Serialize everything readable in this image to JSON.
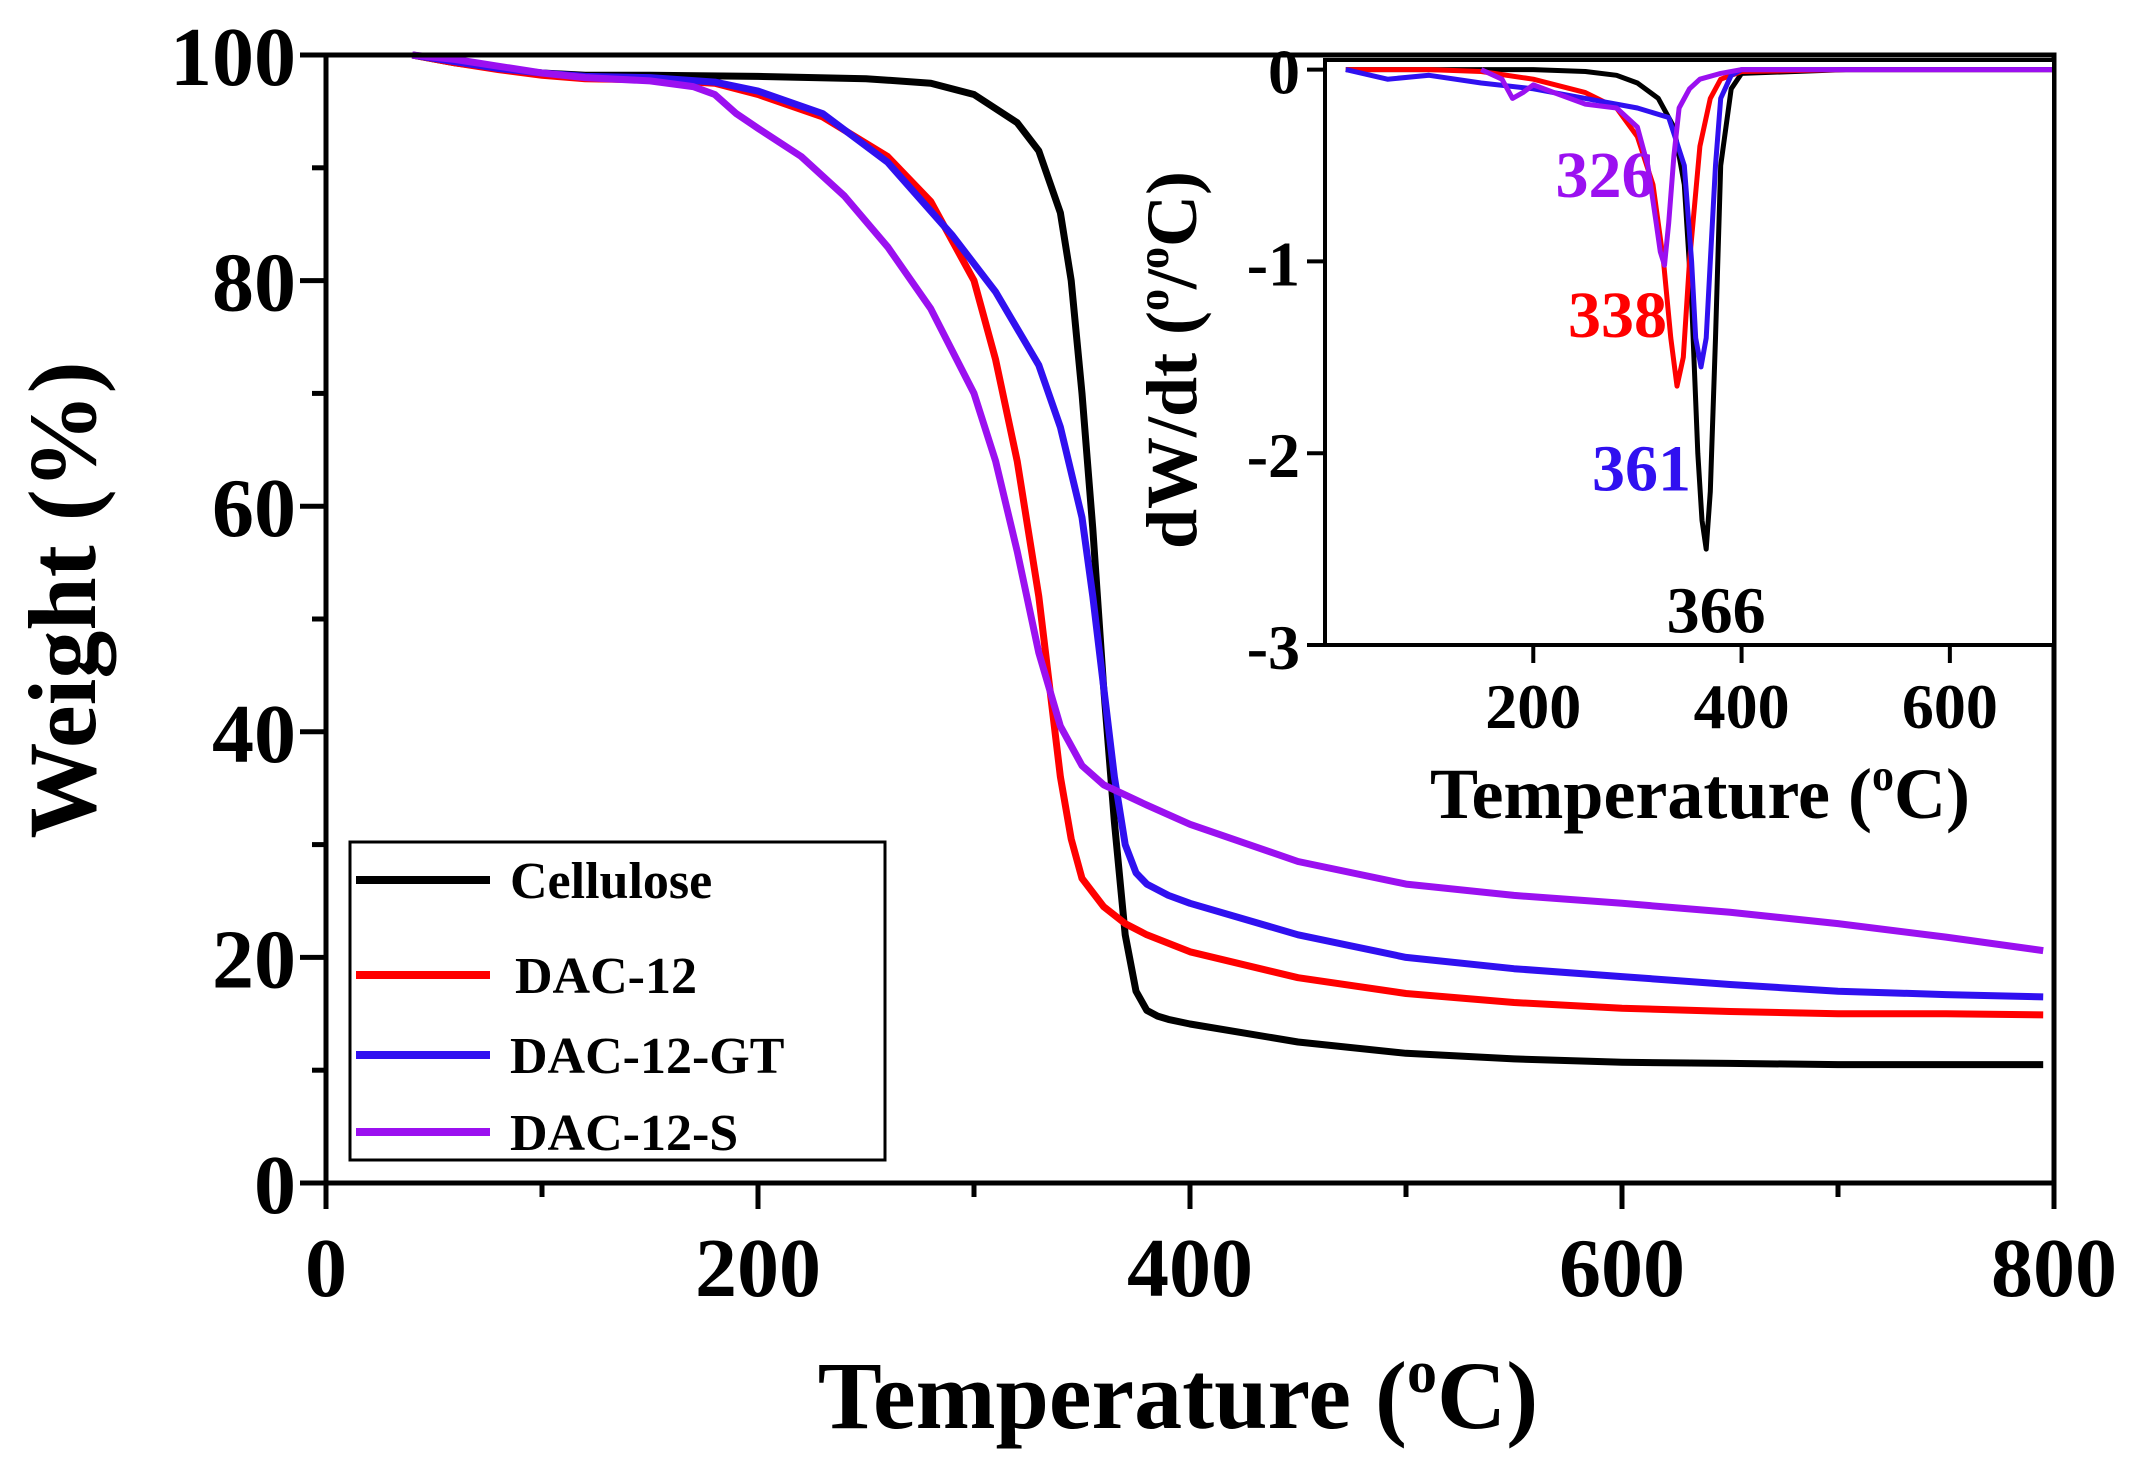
{
  "chart_data": [
    {
      "type": "line",
      "name": "main",
      "xlabel": "Temperature",
      "xlabel_sup": "o",
      "xlabel_unit": "C",
      "ylabel": "Weight (%)",
      "xlim": [
        0,
        800
      ],
      "ylim": [
        0,
        100
      ],
      "xticks": [
        0,
        200,
        400,
        600,
        800
      ],
      "yticks": [
        0,
        20,
        40,
        60,
        80,
        100
      ],
      "legend": {
        "position": "bottom-left",
        "entries": [
          "Cellulose",
          "DAC-12",
          "DAC-12-GT",
          "DAC-12-S"
        ]
      },
      "series": [
        {
          "name": "Cellulose",
          "color": "#000000",
          "x": [
            40,
            60,
            80,
            100,
            120,
            150,
            200,
            250,
            280,
            300,
            320,
            330,
            340,
            345,
            350,
            355,
            360,
            365,
            370,
            375,
            380,
            385,
            390,
            400,
            450,
            500,
            550,
            600,
            650,
            700,
            750,
            795
          ],
          "y": [
            100,
            99.3,
            98.8,
            98.4,
            98.2,
            98.2,
            98.1,
            97.9,
            97.5,
            96.5,
            94,
            91.5,
            86,
            80,
            70,
            58,
            44,
            32,
            22,
            17,
            15.3,
            14.8,
            14.5,
            14.1,
            12.5,
            11.5,
            11.0,
            10.7,
            10.6,
            10.5,
            10.5,
            10.5
          ]
        },
        {
          "name": "DAC-12",
          "color": "#ff0000",
          "x": [
            40,
            60,
            80,
            100,
            120,
            150,
            180,
            200,
            230,
            260,
            280,
            300,
            310,
            320,
            330,
            335,
            340,
            345,
            350,
            360,
            370,
            380,
            400,
            450,
            500,
            550,
            600,
            650,
            700,
            750,
            795
          ],
          "y": [
            100,
            99.3,
            98.7,
            98.2,
            97.9,
            97.8,
            97.5,
            96.5,
            94.5,
            91,
            87,
            80,
            73,
            64,
            52,
            44,
            36,
            30.5,
            27,
            24.5,
            23,
            22,
            20.5,
            18.2,
            16.8,
            16,
            15.5,
            15.2,
            15,
            15,
            14.9
          ]
        },
        {
          "name": "DAC-12-GT",
          "color": "#3010f0",
          "x": [
            40,
            60,
            80,
            100,
            120,
            150,
            180,
            200,
            230,
            260,
            290,
            310,
            330,
            340,
            350,
            355,
            360,
            365,
            370,
            375,
            380,
            390,
            400,
            450,
            500,
            550,
            600,
            650,
            700,
            750,
            795
          ],
          "y": [
            100,
            99.4,
            98.8,
            98.4,
            98.1,
            98,
            97.6,
            96.8,
            94.8,
            90.5,
            84,
            79,
            72.5,
            67,
            59,
            52,
            44,
            36,
            30,
            27.5,
            26.5,
            25.5,
            24.8,
            22,
            20,
            19,
            18.3,
            17.6,
            17,
            16.7,
            16.5
          ]
        },
        {
          "name": "DAC-12-S",
          "color": "#9b10f0",
          "x": [
            40,
            60,
            80,
            100,
            120,
            150,
            170,
            180,
            190,
            200,
            220,
            240,
            260,
            280,
            300,
            310,
            320,
            330,
            340,
            350,
            360,
            380,
            400,
            450,
            500,
            550,
            600,
            650,
            700,
            750,
            795
          ],
          "y": [
            100,
            99.6,
            99,
            98.4,
            98,
            97.7,
            97.2,
            96.5,
            94.8,
            93.5,
            91,
            87.5,
            83,
            77.5,
            70,
            64,
            56,
            47,
            40.5,
            37,
            35.3,
            33.5,
            31.8,
            28.5,
            26.5,
            25.5,
            24.8,
            24,
            23,
            21.8,
            20.6
          ]
        }
      ]
    },
    {
      "type": "line",
      "name": "inset",
      "xlabel": "Temperature",
      "xlabel_sup": "o",
      "xlabel_unit": "C",
      "ylabel_main": "dW/dt (",
      "ylabel_sup1": "o",
      "ylabel_mid": "/",
      "ylabel_sup2": "o",
      "ylabel_unit": "C)",
      "xlim": [
        0,
        700
      ],
      "ylim": [
        -3,
        0.05
      ],
      "xticks": [
        200,
        400,
        600
      ],
      "yticks": [
        0,
        -1,
        -2,
        -3
      ],
      "annotations": [
        {
          "text": "326",
          "x": 326,
          "y": -0.55,
          "color": "#9b10f0"
        },
        {
          "text": "338",
          "x": 338,
          "y": -1.28,
          "color": "#ff0000"
        },
        {
          "text": "361",
          "x": 361,
          "y": -2.08,
          "color": "#3010f0"
        },
        {
          "text": "366",
          "x": 366,
          "y": -2.82,
          "color": "#000000"
        }
      ],
      "series": [
        {
          "name": "Cellulose",
          "color": "#000000",
          "x": [
            20,
            100,
            200,
            250,
            280,
            300,
            320,
            335,
            345,
            352,
            358,
            362,
            366,
            370,
            375,
            380,
            390,
            400,
            500,
            600,
            700
          ],
          "y": [
            0,
            0,
            0,
            -0.01,
            -0.03,
            -0.07,
            -0.15,
            -0.3,
            -0.6,
            -1.2,
            -2.0,
            -2.35,
            -2.5,
            -2.2,
            -1.4,
            -0.5,
            -0.1,
            -0.02,
            0,
            0,
            0
          ]
        },
        {
          "name": "DAC-12",
          "color": "#ff0000",
          "x": [
            20,
            100,
            150,
            200,
            250,
            280,
            300,
            315,
            325,
            332,
            338,
            344,
            350,
            360,
            370,
            380,
            400,
            500,
            600,
            700
          ],
          "y": [
            0,
            0,
            -0.01,
            -0.05,
            -0.12,
            -0.2,
            -0.35,
            -0.6,
            -1.0,
            -1.4,
            -1.65,
            -1.5,
            -1.0,
            -0.4,
            -0.15,
            -0.05,
            -0.01,
            0,
            0,
            0
          ]
        },
        {
          "name": "DAC-12-GT",
          "color": "#3010f0",
          "x": [
            20,
            60,
            100,
            150,
            200,
            250,
            300,
            330,
            345,
            352,
            356,
            361,
            366,
            370,
            375,
            380,
            390,
            400,
            500,
            600,
            700
          ],
          "y": [
            0,
            -0.05,
            -0.03,
            -0.07,
            -0.1,
            -0.15,
            -0.2,
            -0.25,
            -0.5,
            -1.0,
            -1.4,
            -1.55,
            -1.4,
            -1.0,
            -0.5,
            -0.15,
            -0.03,
            0,
            0,
            0,
            0
          ]
        },
        {
          "name": "DAC-12-S",
          "color": "#9b10f0",
          "x": [
            150,
            170,
            180,
            190,
            200,
            220,
            250,
            280,
            300,
            310,
            318,
            322,
            326,
            330,
            335,
            340,
            350,
            360,
            380,
            400,
            500,
            600,
            700
          ],
          "y": [
            0,
            -0.05,
            -0.15,
            -0.12,
            -0.08,
            -0.12,
            -0.18,
            -0.2,
            -0.3,
            -0.5,
            -0.8,
            -0.95,
            -1.02,
            -0.8,
            -0.45,
            -0.2,
            -0.1,
            -0.05,
            -0.02,
            0,
            0,
            0,
            0
          ]
        }
      ]
    }
  ]
}
